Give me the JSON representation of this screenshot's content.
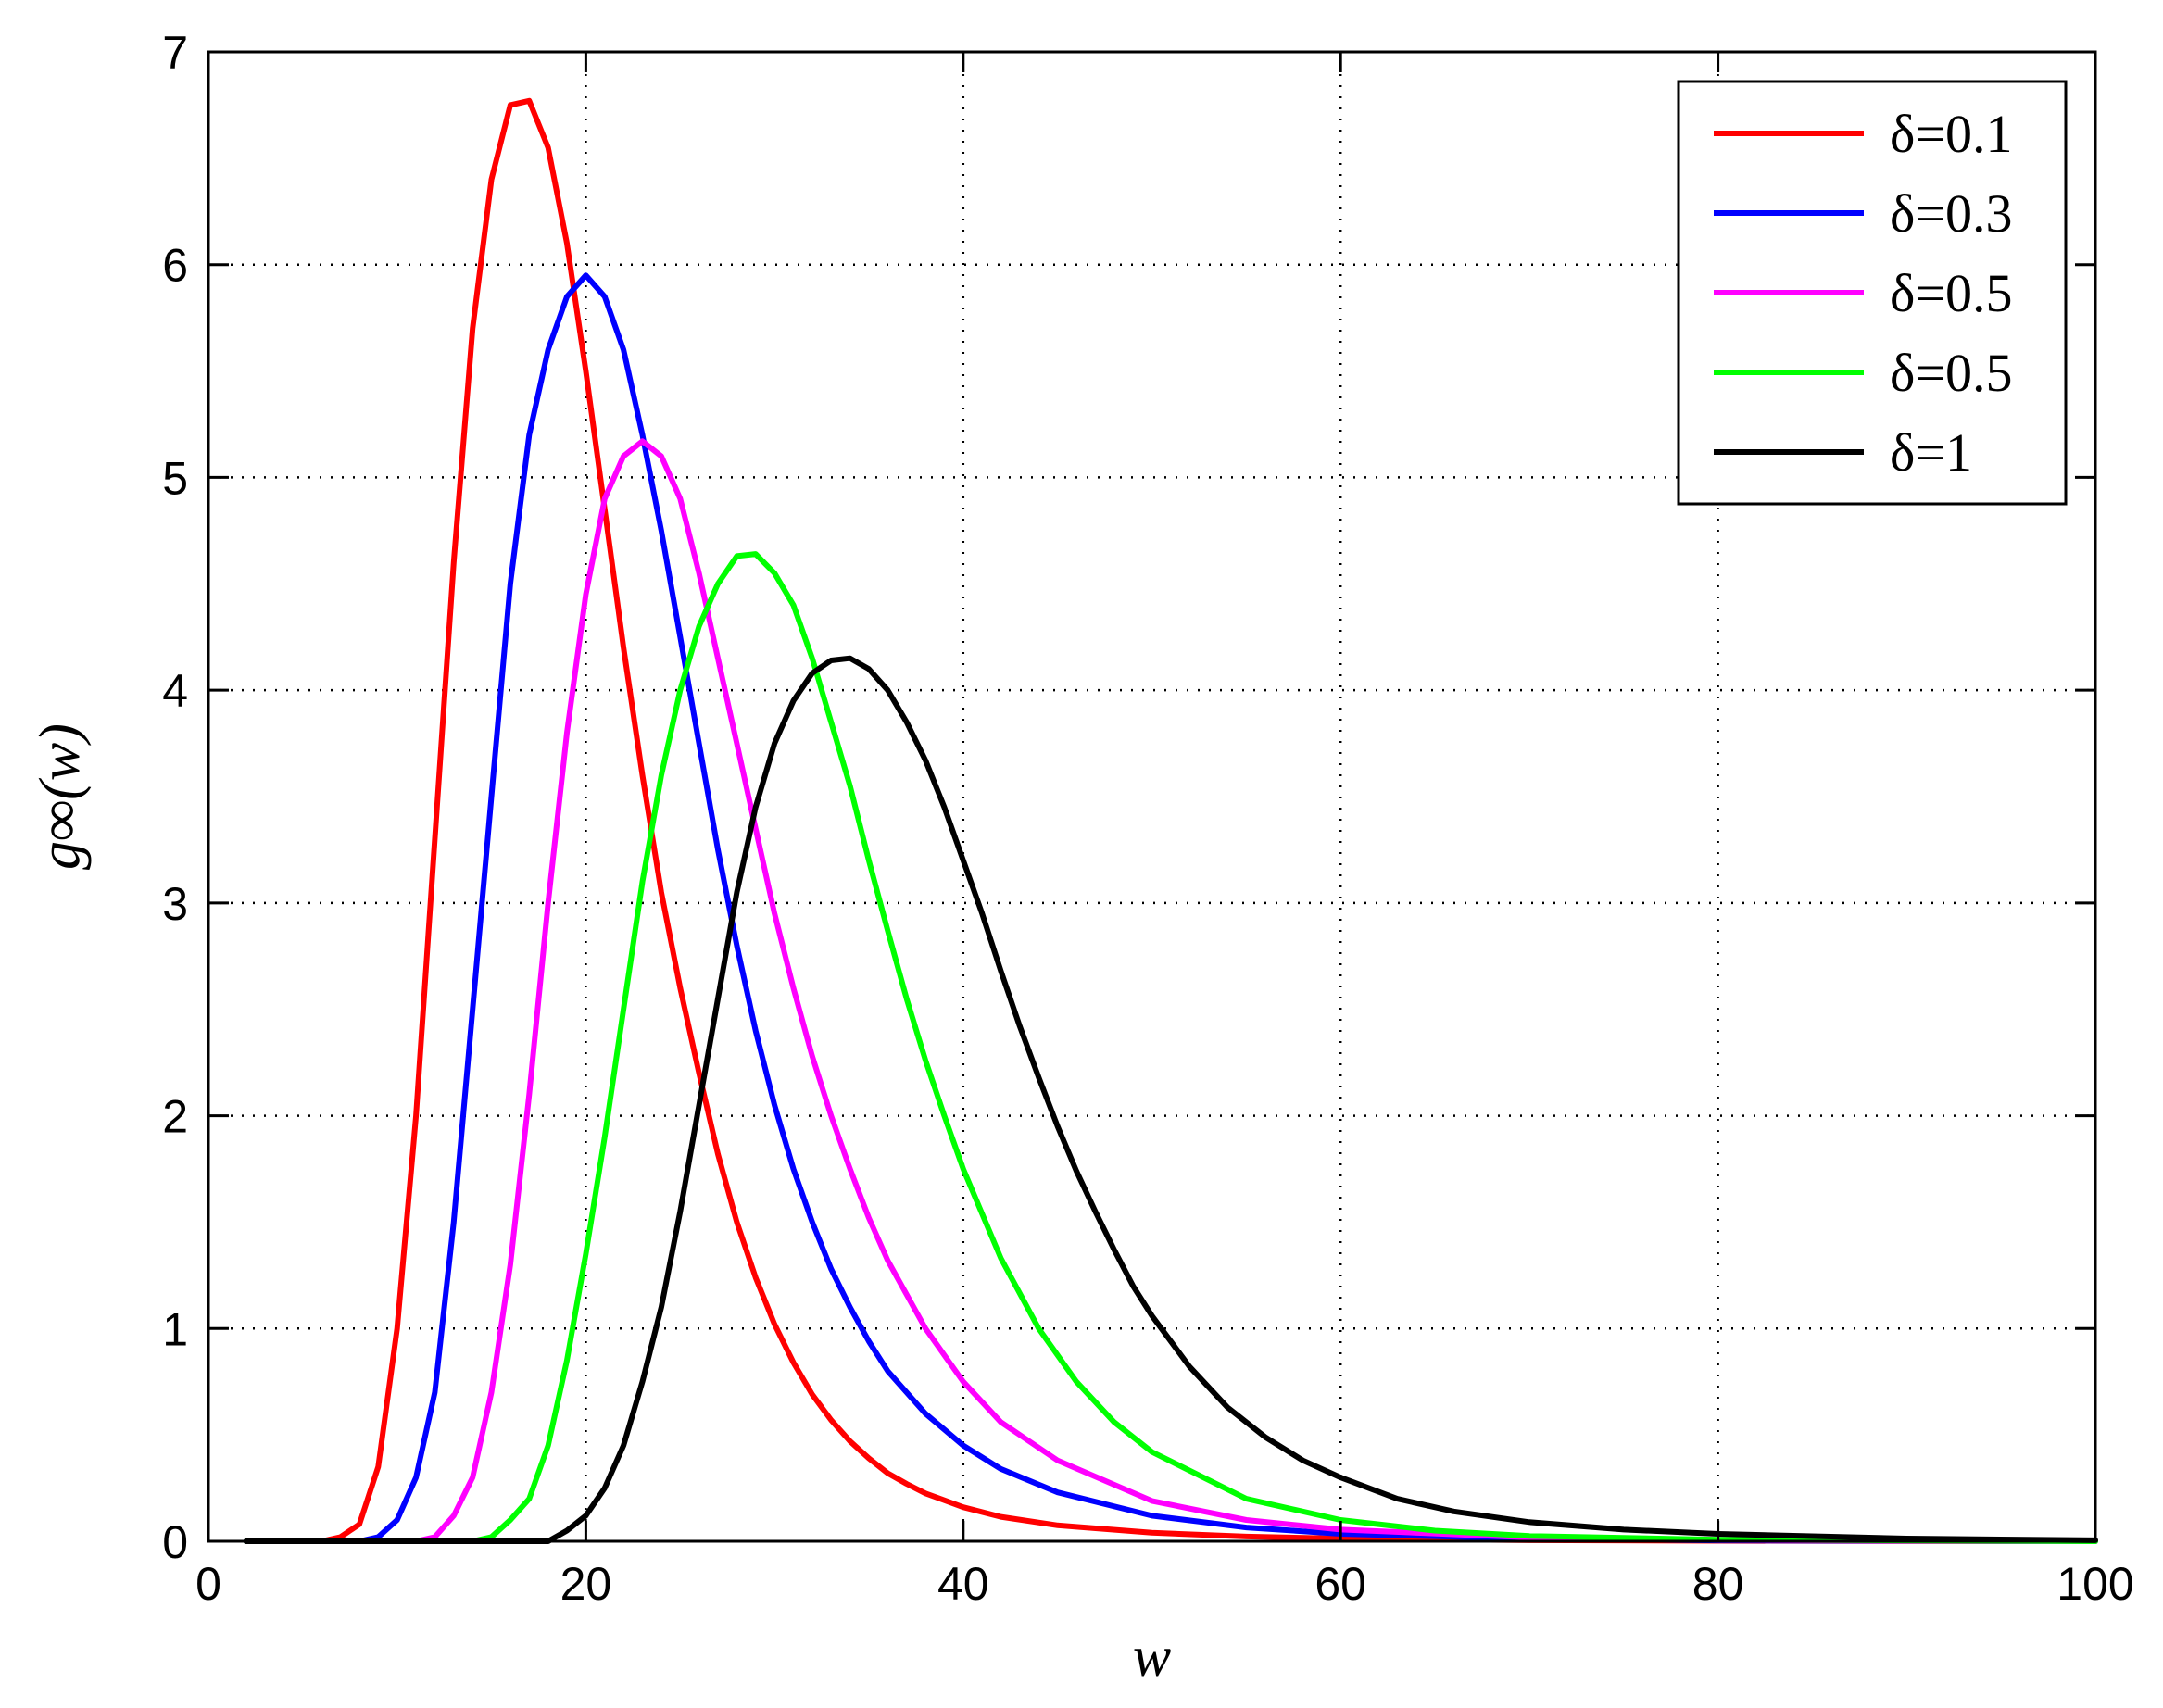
{
  "chart_data": {
    "type": "line",
    "title": "",
    "xlabel": "w",
    "ylabel": "g∞(w)",
    "xlim": [
      0,
      100
    ],
    "ylim": [
      0,
      7
    ],
    "x_ticks": [
      "0",
      "20",
      "40",
      "60",
      "80",
      "100"
    ],
    "y_ticks": [
      "0",
      "1",
      "2",
      "3",
      "4",
      "5",
      "6",
      "7"
    ],
    "grid": true,
    "grid_style": "dotted",
    "legend_position": "top-right",
    "series": [
      {
        "name": "δ=0.1",
        "color": "#ff0000",
        "points": [
          [
            2,
            0
          ],
          [
            6,
            0
          ],
          [
            7,
            0.02
          ],
          [
            8,
            0.08
          ],
          [
            9,
            0.35
          ],
          [
            10,
            1.0
          ],
          [
            11,
            2.0
          ],
          [
            12,
            3.3
          ],
          [
            13,
            4.6
          ],
          [
            14,
            5.7
          ],
          [
            15,
            6.4
          ],
          [
            16,
            6.75
          ],
          [
            17,
            6.77
          ],
          [
            18,
            6.55
          ],
          [
            19,
            6.1
          ],
          [
            20,
            5.5
          ],
          [
            21,
            4.85
          ],
          [
            22,
            4.2
          ],
          [
            23,
            3.6
          ],
          [
            24,
            3.05
          ],
          [
            25,
            2.6
          ],
          [
            26,
            2.2
          ],
          [
            27,
            1.82
          ],
          [
            28,
            1.5
          ],
          [
            29,
            1.24
          ],
          [
            30,
            1.02
          ],
          [
            31,
            0.84
          ],
          [
            32,
            0.69
          ],
          [
            33,
            0.57
          ],
          [
            34,
            0.47
          ],
          [
            35,
            0.39
          ],
          [
            36,
            0.32
          ],
          [
            37,
            0.27
          ],
          [
            38,
            0.225
          ],
          [
            40,
            0.16
          ],
          [
            42,
            0.115
          ],
          [
            45,
            0.075
          ],
          [
            50,
            0.04
          ],
          [
            55,
            0.022
          ],
          [
            60,
            0.013
          ],
          [
            70,
            0.005
          ],
          [
            80,
            0.002
          ],
          [
            100,
            0
          ]
        ]
      },
      {
        "name": "δ=0.3",
        "color": "#0000ff",
        "points": [
          [
            2,
            0
          ],
          [
            8,
            0
          ],
          [
            9,
            0.02
          ],
          [
            10,
            0.1
          ],
          [
            11,
            0.3
          ],
          [
            12,
            0.7
          ],
          [
            13,
            1.5
          ],
          [
            14,
            2.5
          ],
          [
            15,
            3.5
          ],
          [
            16,
            4.5
          ],
          [
            17,
            5.2
          ],
          [
            18,
            5.6
          ],
          [
            19,
            5.85
          ],
          [
            20,
            5.95
          ],
          [
            21,
            5.85
          ],
          [
            22,
            5.6
          ],
          [
            23,
            5.2
          ],
          [
            24,
            4.75
          ],
          [
            25,
            4.25
          ],
          [
            26,
            3.75
          ],
          [
            27,
            3.25
          ],
          [
            28,
            2.8
          ],
          [
            29,
            2.4
          ],
          [
            30,
            2.05
          ],
          [
            31,
            1.75
          ],
          [
            32,
            1.5
          ],
          [
            33,
            1.28
          ],
          [
            34,
            1.1
          ],
          [
            35,
            0.94
          ],
          [
            36,
            0.8
          ],
          [
            38,
            0.6
          ],
          [
            40,
            0.45
          ],
          [
            42,
            0.34
          ],
          [
            45,
            0.23
          ],
          [
            50,
            0.12
          ],
          [
            55,
            0.065
          ],
          [
            60,
            0.035
          ],
          [
            70,
            0.012
          ],
          [
            80,
            0.004
          ],
          [
            100,
            0
          ]
        ]
      },
      {
        "name": "δ=0.5",
        "color": "#ff00ff",
        "points": [
          [
            2,
            0
          ],
          [
            11,
            0
          ],
          [
            12,
            0.02
          ],
          [
            13,
            0.12
          ],
          [
            14,
            0.3
          ],
          [
            15,
            0.7
          ],
          [
            16,
            1.3
          ],
          [
            17,
            2.1
          ],
          [
            18,
            3.0
          ],
          [
            19,
            3.8
          ],
          [
            20,
            4.45
          ],
          [
            21,
            4.9
          ],
          [
            22,
            5.1
          ],
          [
            23,
            5.17
          ],
          [
            24,
            5.1
          ],
          [
            25,
            4.9
          ],
          [
            26,
            4.55
          ],
          [
            27,
            4.15
          ],
          [
            28,
            3.75
          ],
          [
            29,
            3.35
          ],
          [
            30,
            2.95
          ],
          [
            31,
            2.6
          ],
          [
            32,
            2.28
          ],
          [
            33,
            2.0
          ],
          [
            34,
            1.75
          ],
          [
            35,
            1.52
          ],
          [
            36,
            1.32
          ],
          [
            38,
            1.0
          ],
          [
            40,
            0.75
          ],
          [
            42,
            0.56
          ],
          [
            45,
            0.38
          ],
          [
            50,
            0.19
          ],
          [
            55,
            0.1
          ],
          [
            60,
            0.055
          ],
          [
            70,
            0.018
          ],
          [
            80,
            0.006
          ],
          [
            100,
            0
          ]
        ]
      },
      {
        "name": "δ=0.5",
        "color": "#00ff00",
        "points": [
          [
            2,
            0
          ],
          [
            14,
            0
          ],
          [
            15,
            0.02
          ],
          [
            16,
            0.1
          ],
          [
            17,
            0.2
          ],
          [
            18,
            0.45
          ],
          [
            19,
            0.85
          ],
          [
            20,
            1.35
          ],
          [
            21,
            1.9
          ],
          [
            22,
            2.5
          ],
          [
            23,
            3.1
          ],
          [
            24,
            3.6
          ],
          [
            25,
            4.0
          ],
          [
            26,
            4.3
          ],
          [
            27,
            4.5
          ],
          [
            28,
            4.63
          ],
          [
            29,
            4.64
          ],
          [
            30,
            4.55
          ],
          [
            31,
            4.4
          ],
          [
            32,
            4.15
          ],
          [
            33,
            3.85
          ],
          [
            34,
            3.55
          ],
          [
            35,
            3.2
          ],
          [
            36,
            2.87
          ],
          [
            37,
            2.55
          ],
          [
            38,
            2.26
          ],
          [
            39,
            2.0
          ],
          [
            40,
            1.75
          ],
          [
            42,
            1.33
          ],
          [
            44,
            1.0
          ],
          [
            46,
            0.75
          ],
          [
            48,
            0.56
          ],
          [
            50,
            0.42
          ],
          [
            55,
            0.2
          ],
          [
            60,
            0.1
          ],
          [
            65,
            0.05
          ],
          [
            70,
            0.025
          ],
          [
            80,
            0.008
          ],
          [
            100,
            0
          ]
        ]
      },
      {
        "name": "δ=1",
        "color": "#000000",
        "points": [
          [
            2,
            0
          ],
          [
            18,
            0
          ],
          [
            19,
            0.05
          ],
          [
            20,
            0.12
          ],
          [
            21,
            0.25
          ],
          [
            22,
            0.45
          ],
          [
            23,
            0.75
          ],
          [
            24,
            1.1
          ],
          [
            25,
            1.55
          ],
          [
            26,
            2.05
          ],
          [
            27,
            2.55
          ],
          [
            28,
            3.05
          ],
          [
            29,
            3.45
          ],
          [
            30,
            3.75
          ],
          [
            31,
            3.95
          ],
          [
            32,
            4.08
          ],
          [
            33,
            4.14
          ],
          [
            34,
            4.15
          ],
          [
            35,
            4.1
          ],
          [
            36,
            4.0
          ],
          [
            37,
            3.85
          ],
          [
            38,
            3.67
          ],
          [
            39,
            3.45
          ],
          [
            40,
            3.2
          ],
          [
            41,
            2.95
          ],
          [
            42,
            2.68
          ],
          [
            43,
            2.42
          ],
          [
            44,
            2.18
          ],
          [
            45,
            1.95
          ],
          [
            46,
            1.74
          ],
          [
            47,
            1.55
          ],
          [
            48,
            1.37
          ],
          [
            49,
            1.2
          ],
          [
            50,
            1.06
          ],
          [
            52,
            0.82
          ],
          [
            54,
            0.63
          ],
          [
            56,
            0.49
          ],
          [
            58,
            0.38
          ],
          [
            60,
            0.3
          ],
          [
            63,
            0.2
          ],
          [
            66,
            0.14
          ],
          [
            70,
            0.09
          ],
          [
            75,
            0.055
          ],
          [
            80,
            0.035
          ],
          [
            90,
            0.013
          ],
          [
            100,
            0.005
          ]
        ]
      }
    ]
  }
}
